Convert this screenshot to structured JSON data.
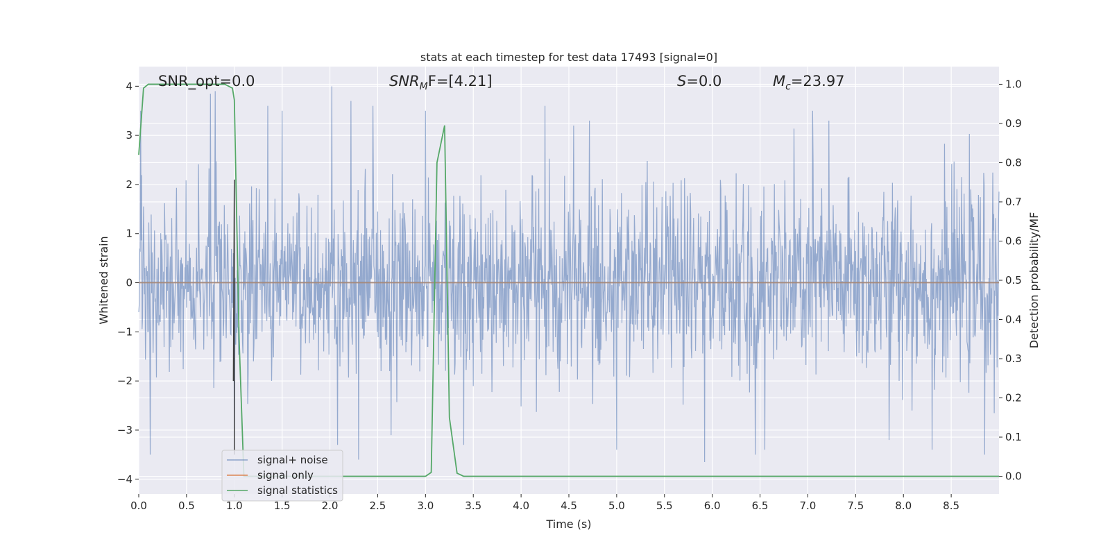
{
  "chart_data": {
    "type": "line",
    "title": "stats at each timestep for test data 17493 [signal=0]",
    "xlabel": "Time (s)",
    "ylabel": "Whitened strain",
    "ylabel_right": "Detection probability/MF",
    "xlim": [
      0,
      9.0
    ],
    "ylim": [
      -4.3,
      4.4
    ],
    "ylim_right": [
      -0.045,
      1.045
    ],
    "x_ticks": [
      0.0,
      0.5,
      1.0,
      1.5,
      2.0,
      2.5,
      3.0,
      3.5,
      4.0,
      4.5,
      5.0,
      5.5,
      6.0,
      6.5,
      7.0,
      7.5,
      8.0,
      8.5
    ],
    "x_tick_labels": [
      "0.0",
      "0.5",
      "1.0",
      "1.5",
      "2.0",
      "2.5",
      "3.0",
      "3.5",
      "4.0",
      "4.5",
      "5.0",
      "5.5",
      "6.0",
      "6.5",
      "7.0",
      "7.5",
      "8.0",
      "8.5"
    ],
    "y_ticks": [
      -4,
      -3,
      -2,
      -1,
      0,
      1,
      2,
      3,
      4
    ],
    "y_tick_labels": [
      "−4",
      "−3",
      "−2",
      "−1",
      "0",
      "1",
      "2",
      "3",
      "4"
    ],
    "y2_ticks": [
      0.0,
      0.1,
      0.2,
      0.3,
      0.4,
      0.5,
      0.6,
      0.7,
      0.8,
      0.9,
      1.0
    ],
    "y2_tick_labels": [
      "0.0",
      "0.1",
      "0.2",
      "0.3",
      "0.4",
      "0.5",
      "0.6",
      "0.7",
      "0.8",
      "0.9",
      "1.0"
    ],
    "grid": true,
    "legend_position": "lower-left",
    "annotations": [
      {
        "pre": "SNR_opt=0.0",
        "italic": "",
        "sub": "",
        "post": ""
      },
      {
        "pre": "",
        "italic": "SNR",
        "sub": "M",
        "post": "F=[4.21]"
      },
      {
        "pre": "",
        "italic": "S",
        "sub": "",
        "post": "=0.0"
      },
      {
        "pre": "",
        "italic": "M",
        "sub": "c",
        "post": "=23.97"
      }
    ],
    "series": [
      {
        "name": "signal+ noise",
        "color": "#4c72b0",
        "axis": "left",
        "style": "dense whitened noise, approx. ±1.6 core, peaks to ±4",
        "sample_peaks": [
          {
            "x": 0.02,
            "y": 3.5
          },
          {
            "x": 0.12,
            "y": -3.5
          },
          {
            "x": 0.75,
            "y": 3.85
          },
          {
            "x": 0.8,
            "y": 3.9
          },
          {
            "x": 1.0,
            "y": -3.5
          },
          {
            "x": 1.35,
            "y": 3.6
          },
          {
            "x": 1.5,
            "y": 3.5
          },
          {
            "x": 2.02,
            "y": 4.0
          },
          {
            "x": 2.22,
            "y": 3.7
          },
          {
            "x": 2.3,
            "y": -3.6
          },
          {
            "x": 2.45,
            "y": 3.6
          },
          {
            "x": 3.0,
            "y": 3.5
          },
          {
            "x": 3.4,
            "y": -3.3
          },
          {
            "x": 4.25,
            "y": 3.6
          },
          {
            "x": 4.55,
            "y": 3.2
          },
          {
            "x": 5.0,
            "y": -3.4
          },
          {
            "x": 5.92,
            "y": -3.65
          },
          {
            "x": 6.45,
            "y": -3.5
          },
          {
            "x": 6.55,
            "y": -3.4
          },
          {
            "x": 7.05,
            "y": 3.5
          },
          {
            "x": 7.22,
            "y": 3.3
          },
          {
            "x": 7.85,
            "y": -3.2
          },
          {
            "x": 8.3,
            "y": -3.4
          },
          {
            "x": 8.85,
            "y": -3.5
          }
        ]
      },
      {
        "name": "signal only",
        "color": "#dd8452",
        "axis": "left",
        "x": [
          0.0,
          9.0
        ],
        "y": [
          0.0,
          0.0
        ]
      },
      {
        "name": "signal statistics",
        "color": "#55a868",
        "axis": "right",
        "x": [
          0.0,
          0.05,
          0.1,
          0.2,
          0.5,
          0.9,
          0.98,
          1.0,
          1.05,
          1.1,
          2.0,
          3.0,
          3.06,
          3.12,
          3.2,
          3.25,
          3.33,
          3.4,
          4.0,
          9.0
        ],
        "y": [
          0.82,
          0.99,
          1.0,
          1.0,
          1.0,
          1.0,
          0.99,
          0.96,
          0.35,
          0.0,
          0.0,
          0.0,
          0.01,
          0.8,
          0.895,
          0.15,
          0.008,
          0.0,
          0.0,
          0.0
        ]
      }
    ],
    "matched_filter_marker": {
      "color": "#404040",
      "x": [
        0.99,
        1.0,
        1.0
      ],
      "y": [
        -2.0,
        2.1,
        -3.5
      ]
    }
  }
}
